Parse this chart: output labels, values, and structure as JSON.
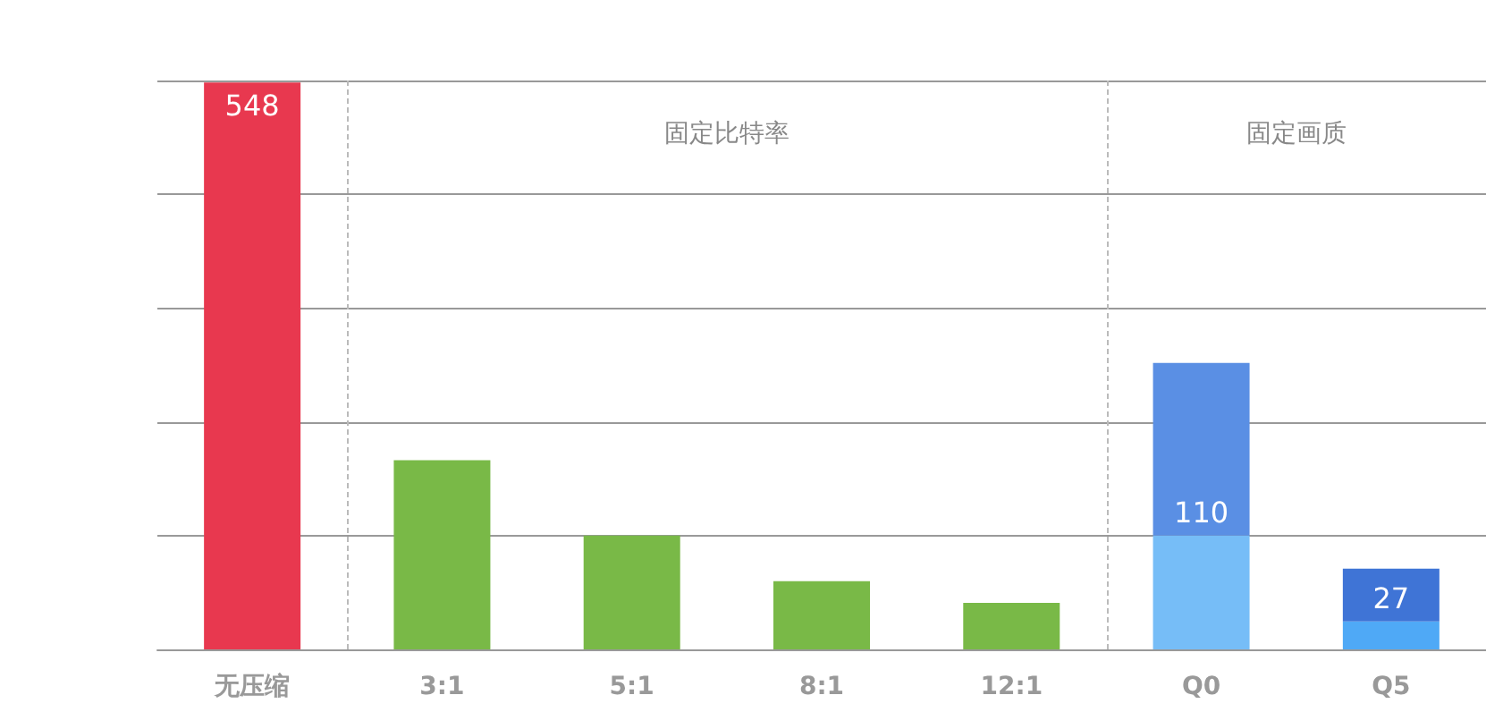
{
  "chart_data": {
    "type": "bar",
    "stacked": true,
    "grid": "y",
    "ylim": [
      0,
      550
    ],
    "yticks": [
      {
        "value": 0,
        "label": null
      },
      {
        "value": 110,
        "label": null
      },
      {
        "value": 220,
        "label": null
      },
      {
        "value": 330,
        "label": null
      },
      {
        "value": 440,
        "label": null
      },
      {
        "value": 550,
        "label": null
      }
    ],
    "categories": [
      "无压缩",
      "3:1",
      "5:1",
      "8:1",
      "12:1",
      "Q0",
      "Q5"
    ],
    "series": [
      {
        "colors": [
          "#e8384f",
          "#79b947",
          "#79b947",
          "#79b947",
          "#79b947",
          "#76bdf7",
          "#4fa9f6"
        ],
        "values": [
          548,
          183,
          110,
          66,
          45,
          110,
          27
        ],
        "value_labels": [
          "548",
          null,
          null,
          null,
          null,
          "110",
          "27"
        ]
      },
      {
        "colors": [
          null,
          null,
          null,
          null,
          null,
          "#5a8fe4",
          "#3f74d6"
        ],
        "values": [
          null,
          null,
          null,
          null,
          null,
          167,
          51
        ]
      }
    ],
    "annotations": [
      "固定比特率",
      "固定画质"
    ]
  }
}
